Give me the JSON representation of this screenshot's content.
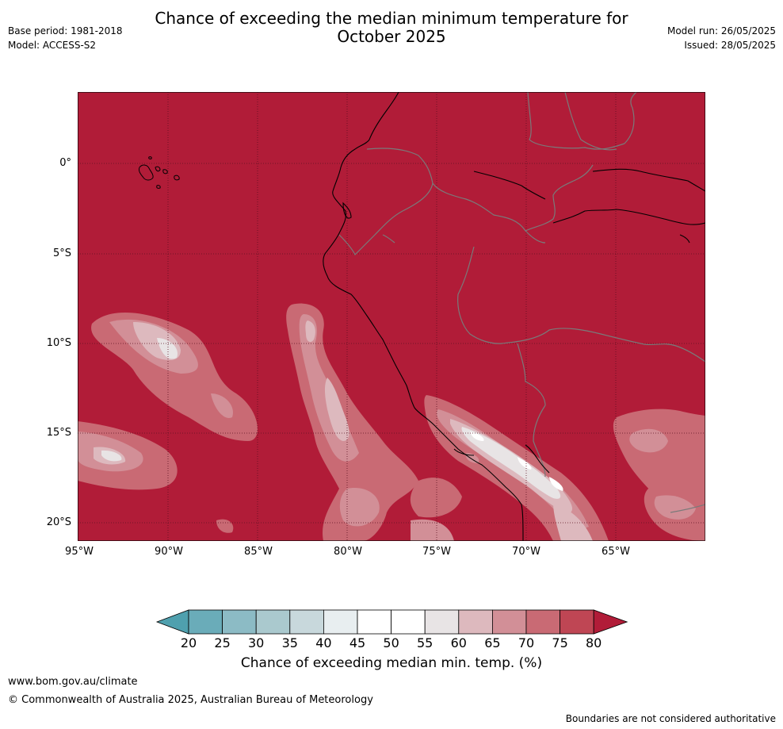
{
  "title": {
    "line1": "Chance of exceeding the median minimum temperature for",
    "line2": "October 2025"
  },
  "meta_left": {
    "base_period": "Base period: 1981-2018",
    "model": "Model: ACCESS-S2"
  },
  "meta_right": {
    "model_run": "Model run: 26/05/2025",
    "issued": "Issued: 28/05/2025"
  },
  "map": {
    "latitude_labels": [
      "0°",
      "5°S",
      "10°S",
      "15°S",
      "20°S"
    ],
    "longitude_labels": [
      "95°W",
      "90°W",
      "85°W",
      "80°W",
      "75°W",
      "70°W",
      "65°W"
    ],
    "gridlines": "dotted",
    "background_color": "#b11c38",
    "coastline_color": "#000000",
    "border_color": "#7a7a7a"
  },
  "colorbar": {
    "ticks": [
      "20",
      "25",
      "30",
      "35",
      "40",
      "45",
      "50",
      "55",
      "60",
      "65",
      "70",
      "75",
      "80"
    ],
    "colors": [
      "#4fa0ae",
      "#6aacb9",
      "#8cbbc5",
      "#aac9ce",
      "#c8d8dc",
      "#e8eef0",
      "#ffffff",
      "#ffffff",
      "#e8e4e5",
      "#ddb9be",
      "#d28f97",
      "#c96a74",
      "#bf4654",
      "#b11c38"
    ],
    "label": "Chance of exceeding median min. temp. (%)"
  },
  "footer": {
    "url": "www.bom.gov.au/climate",
    "copyright": "© Commonwealth of Australia 2025, Australian Bureau of Meteorology",
    "disclaimer": "Boundaries are not considered authoritative"
  }
}
